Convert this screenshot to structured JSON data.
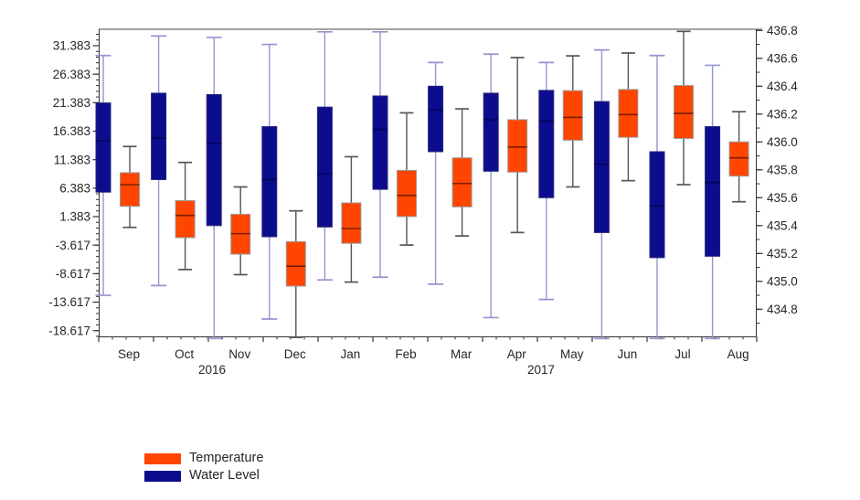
{
  "legend": {
    "items": [
      {
        "label": "Temperature",
        "color": "#ff4500"
      },
      {
        "label": "Water Level",
        "color": "#0c0c8e"
      }
    ]
  },
  "chart_data": {
    "type": "boxplot",
    "title": "",
    "categories": [
      "Sep",
      "Oct",
      "Nov",
      "Dec",
      "Jan",
      "Feb",
      "Mar",
      "Apr",
      "May",
      "Jun",
      "Jul",
      "Aug"
    ],
    "x_axis": {
      "year_labels": [
        {
          "text": "2016",
          "months_span": [
            0,
            4
          ]
        },
        {
          "text": "2017",
          "months_span": [
            4,
            12
          ]
        }
      ]
    },
    "left_axis": {
      "series": "Temperature",
      "max_tick": 31.383,
      "min_tick": -18.617,
      "major_step": 5,
      "minor_step": 1,
      "tick_decimals": 3
    },
    "right_axis": {
      "series": "Water Level",
      "max_tick": 436.8,
      "min_tick": 434.8,
      "major_step": 0.2,
      "minor_step": 0.1,
      "tick_decimals": 1
    },
    "series": [
      {
        "name": "Temperature",
        "axis": "left",
        "colors": {
          "fill": "#ff4500",
          "stroke": "#9b9b9b",
          "median": "#7a1e00",
          "whisker": "#555555"
        },
        "boxes": [
          {
            "month": "Sep",
            "min": -0.5,
            "q1": 3.2,
            "median": 7.0,
            "q3": 9.1,
            "max": 13.7
          },
          {
            "month": "Oct",
            "min": -7.9,
            "q1": -2.3,
            "median": 1.6,
            "q3": 4.2,
            "max": 10.9
          },
          {
            "month": "Nov",
            "min": -8.8,
            "q1": -5.2,
            "median": -1.6,
            "q3": 1.8,
            "max": 6.6
          },
          {
            "month": "Dec",
            "min": -19.8,
            "q1": -10.8,
            "median": -7.3,
            "q3": -3.0,
            "max": 2.4
          },
          {
            "month": "Jan",
            "min": -10.1,
            "q1": -3.3,
            "median": -0.7,
            "q3": 3.8,
            "max": 11.9
          },
          {
            "month": "Feb",
            "min": -3.6,
            "q1": 1.4,
            "median": 5.1,
            "q3": 9.5,
            "max": 19.6
          },
          {
            "month": "Mar",
            "min": -2.0,
            "q1": 3.1,
            "median": 7.2,
            "q3": 11.7,
            "max": 20.3
          },
          {
            "month": "Apr",
            "min": -1.4,
            "q1": 9.2,
            "median": 13.6,
            "q3": 18.4,
            "max": 29.3
          },
          {
            "month": "May",
            "min": 6.6,
            "q1": 14.8,
            "median": 18.8,
            "q3": 23.5,
            "max": 29.6
          },
          {
            "month": "Jun",
            "min": 7.7,
            "q1": 15.3,
            "median": 19.3,
            "q3": 23.7,
            "max": 30.1
          },
          {
            "month": "Jul",
            "min": 7.0,
            "q1": 15.1,
            "median": 19.5,
            "q3": 24.4,
            "max": 33.9
          },
          {
            "month": "Aug",
            "min": 4.0,
            "q1": 8.5,
            "median": 11.7,
            "q3": 14.5,
            "max": 19.8
          }
        ]
      },
      {
        "name": "Water Level",
        "axis": "right",
        "colors": {
          "fill": "#0c0c8e",
          "stroke": "#29297a",
          "median": "#05055a",
          "whisker": "#9495cf"
        },
        "boxes": [
          {
            "month": "Sep",
            "min": 434.9,
            "q1": 435.64,
            "median": 436.01,
            "q3": 436.28,
            "max": 436.62
          },
          {
            "month": "Oct",
            "min": 434.97,
            "q1": 435.73,
            "median": 436.03,
            "q3": 436.35,
            "max": 436.76
          },
          {
            "month": "Nov",
            "min": 434.59,
            "q1": 435.4,
            "median": 435.99,
            "q3": 436.34,
            "max": 436.75
          },
          {
            "month": "Dec",
            "min": 434.73,
            "q1": 435.32,
            "median": 435.73,
            "q3": 436.11,
            "max": 436.7
          },
          {
            "month": "Jan",
            "min": 435.01,
            "q1": 435.39,
            "median": 435.77,
            "q3": 436.25,
            "max": 436.79
          },
          {
            "month": "Feb",
            "min": 435.03,
            "q1": 435.66,
            "median": 436.09,
            "q3": 436.33,
            "max": 436.79
          },
          {
            "month": "Mar",
            "min": 434.98,
            "q1": 435.93,
            "median": 436.23,
            "q3": 436.4,
            "max": 436.57
          },
          {
            "month": "Apr",
            "min": 434.74,
            "q1": 435.79,
            "median": 436.16,
            "q3": 436.35,
            "max": 436.63
          },
          {
            "month": "May",
            "min": 434.87,
            "q1": 435.6,
            "median": 436.15,
            "q3": 436.37,
            "max": 436.57
          },
          {
            "month": "Jun",
            "min": 434.59,
            "q1": 435.35,
            "median": 435.84,
            "q3": 436.29,
            "max": 436.66
          },
          {
            "month": "Jul",
            "min": 434.59,
            "q1": 435.17,
            "median": 435.54,
            "q3": 435.93,
            "max": 436.62
          },
          {
            "month": "Aug",
            "min": 434.59,
            "q1": 435.18,
            "median": 435.71,
            "q3": 436.11,
            "max": 436.55
          }
        ]
      }
    ]
  }
}
